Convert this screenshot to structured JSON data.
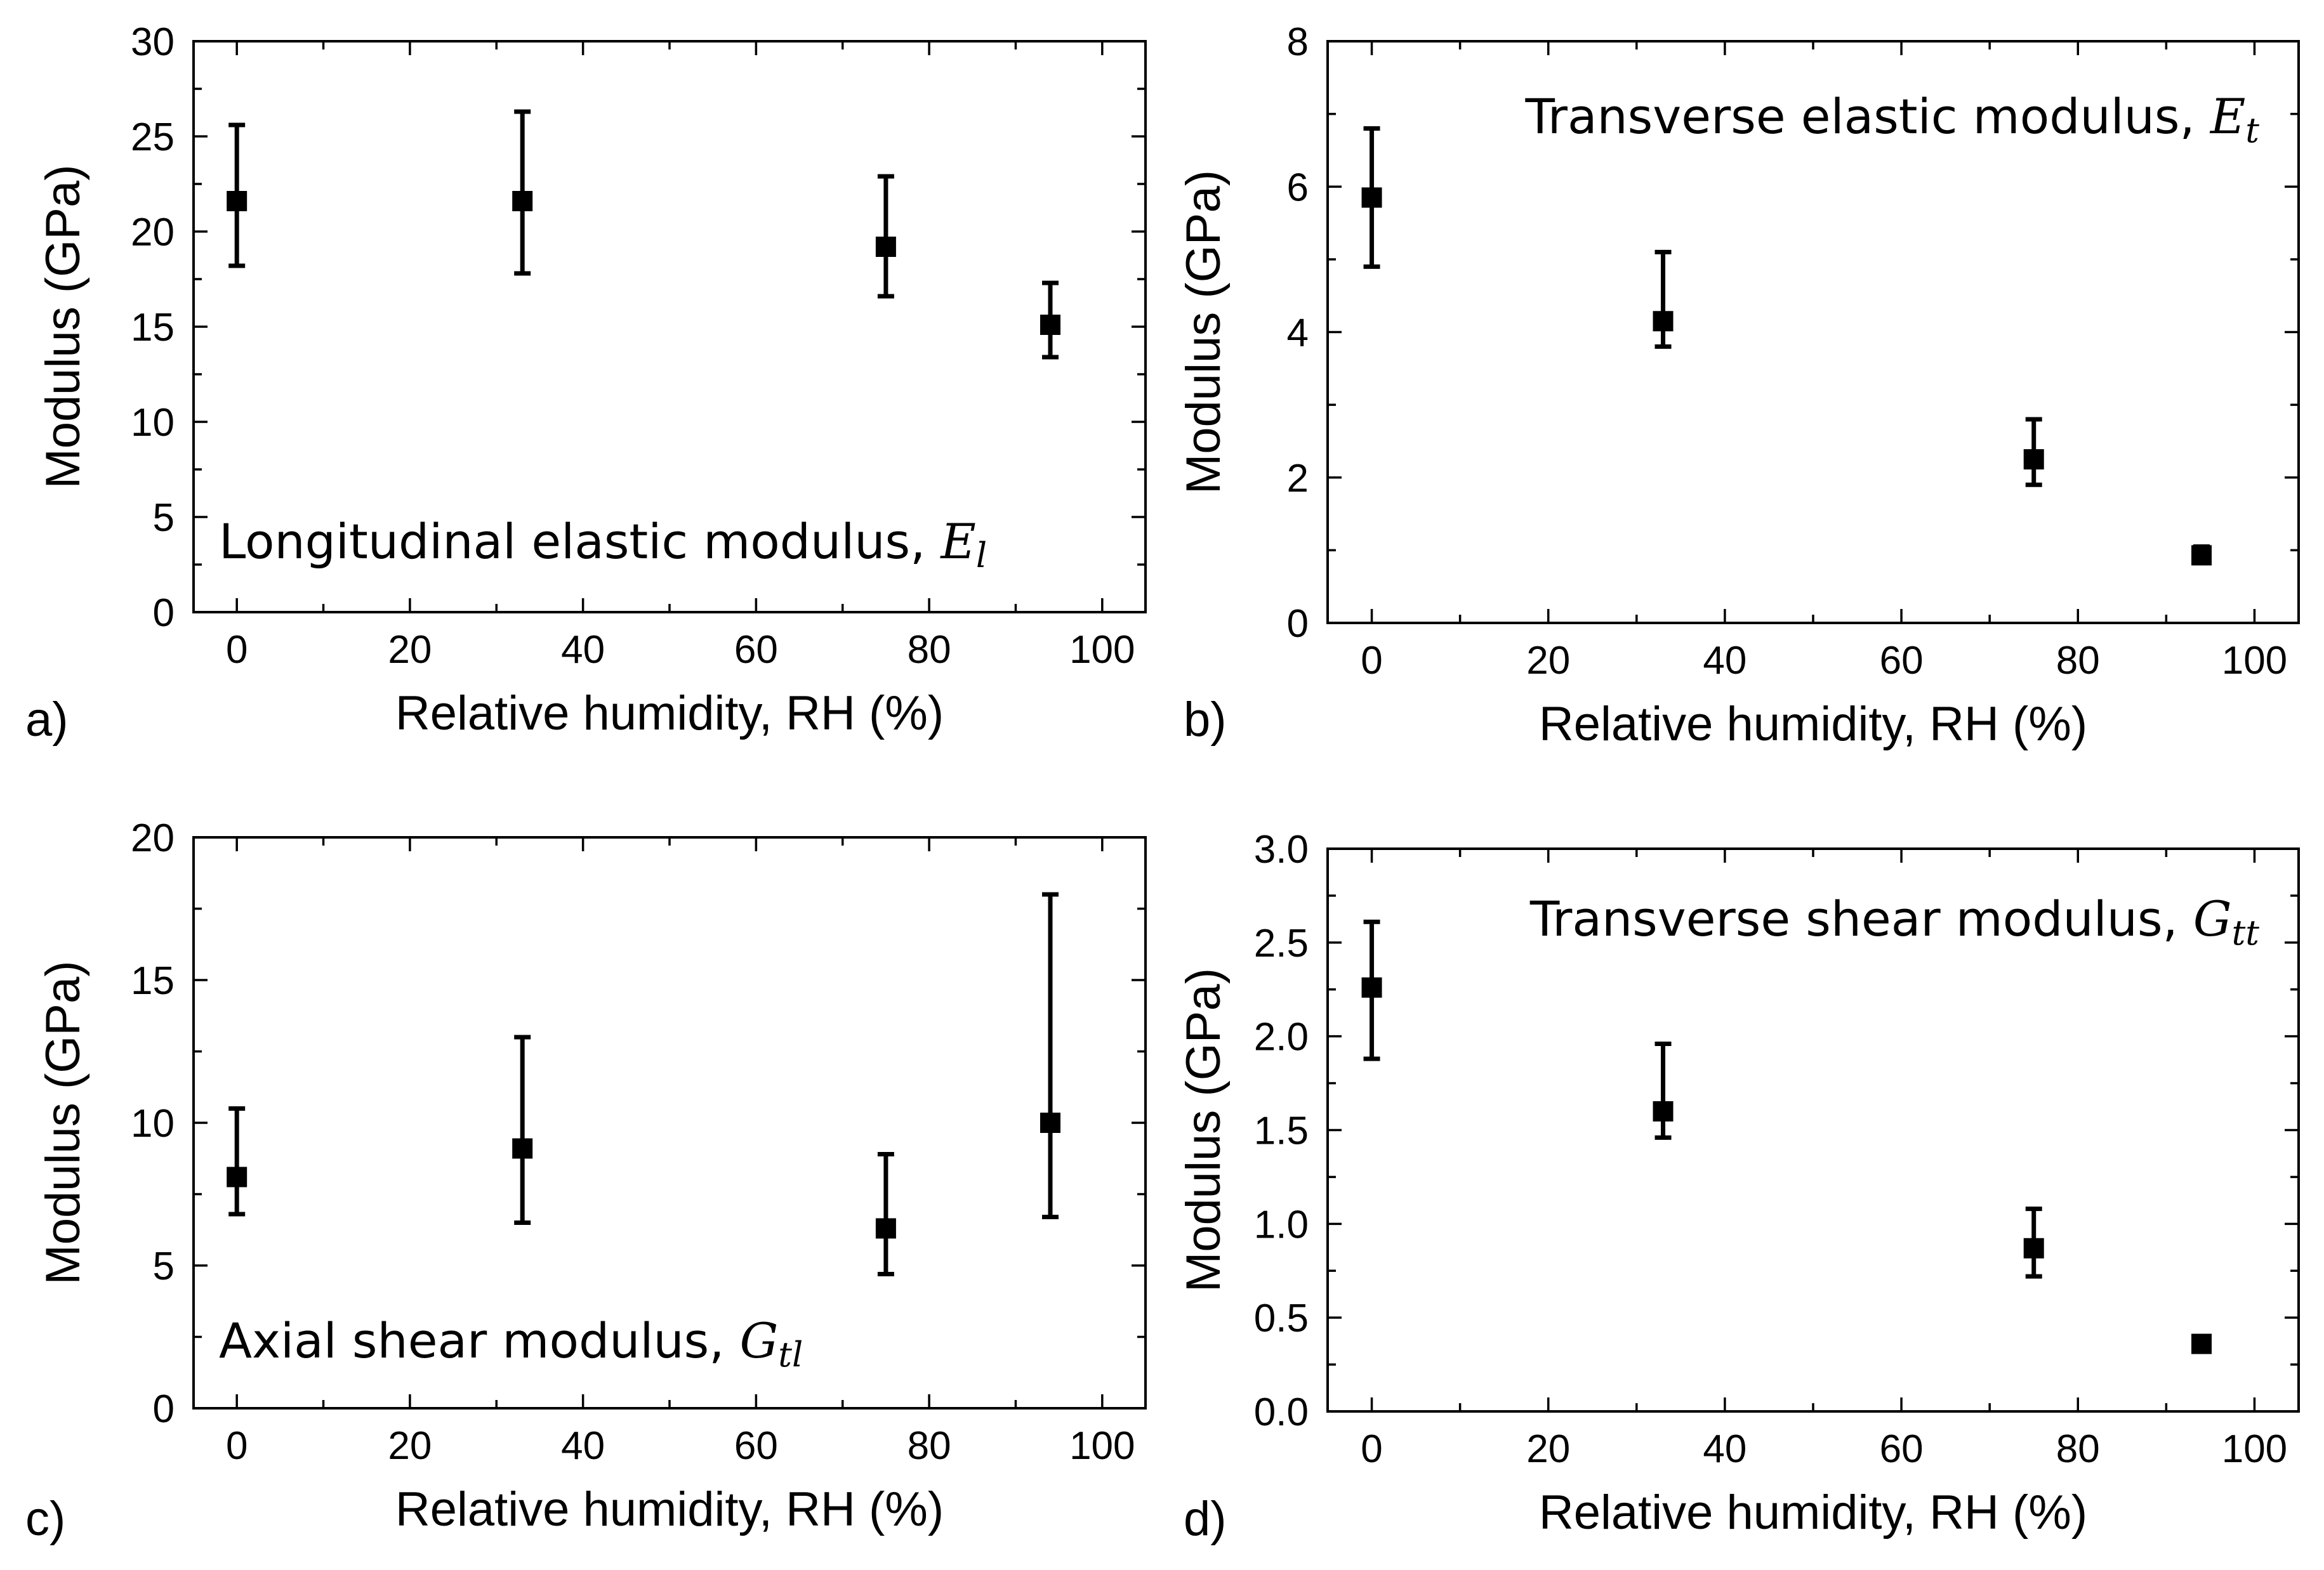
{
  "chart_data": [
    {
      "panel_label": "a)",
      "type": "scatter",
      "annotation": {
        "text": "Longitudinal elastic modulus, ",
        "variable": "E",
        "subscript": "l"
      },
      "xlabel": "Relative humidity, RH (%)",
      "ylabel": "Modulus (GPa)",
      "xlim": [
        -5,
        105
      ],
      "ylim": [
        0,
        30
      ],
      "xticks": [
        0,
        20,
        40,
        60,
        80,
        100
      ],
      "yticks": [
        0,
        5,
        10,
        15,
        20,
        25,
        30
      ],
      "tick_labels_y": [
        "0",
        "5",
        "10",
        "15",
        "20",
        "25",
        "30"
      ],
      "tick_labels_x": [
        "0",
        "20",
        "40",
        "60",
        "80",
        "100"
      ],
      "x_minor_step": 10,
      "y_minor_step": 2.5,
      "points": [
        {
          "x": 0,
          "y": 21.6,
          "err_low": 18.2,
          "err_high": 25.6
        },
        {
          "x": 33,
          "y": 21.6,
          "err_low": 17.8,
          "err_high": 26.3
        },
        {
          "x": 75,
          "y": 19.2,
          "err_low": 16.6,
          "err_high": 22.9
        },
        {
          "x": 94,
          "y": 15.1,
          "err_low": 13.4,
          "err_high": 17.3
        }
      ]
    },
    {
      "panel_label": "b)",
      "type": "scatter",
      "annotation": {
        "text": "Transverse elastic modulus, ",
        "variable": "E",
        "subscript": "t"
      },
      "xlabel": "Relative humidity, RH (%)",
      "ylabel": "Modulus (GPa)",
      "xlim": [
        -5,
        105
      ],
      "ylim": [
        0,
        8
      ],
      "xticks": [
        0,
        20,
        40,
        60,
        80,
        100
      ],
      "yticks": [
        0,
        2,
        4,
        6,
        8
      ],
      "tick_labels_y": [
        "0",
        "2",
        "4",
        "6",
        "8"
      ],
      "tick_labels_x": [
        "0",
        "20",
        "40",
        "60",
        "80",
        "100"
      ],
      "x_minor_step": 10,
      "y_minor_step": 1,
      "points": [
        {
          "x": 0,
          "y": 5.85,
          "err_low": 4.9,
          "err_high": 6.8
        },
        {
          "x": 33,
          "y": 4.15,
          "err_low": 3.8,
          "err_high": 5.1
        },
        {
          "x": 75,
          "y": 2.25,
          "err_low": 1.9,
          "err_high": 2.8
        },
        {
          "x": 94,
          "y": 0.93,
          "err_low": 0.85,
          "err_high": 1.05
        }
      ]
    },
    {
      "panel_label": "c)",
      "type": "scatter",
      "annotation": {
        "text": "Axial shear modulus, ",
        "variable": "G",
        "subscript": "tl"
      },
      "xlabel": "Relative humidity, RH (%)",
      "ylabel": "Modulus (GPa)",
      "xlim": [
        -5,
        105
      ],
      "ylim": [
        0,
        20
      ],
      "xticks": [
        0,
        20,
        40,
        60,
        80,
        100
      ],
      "yticks": [
        0,
        5,
        10,
        15,
        20
      ],
      "tick_labels_y": [
        "0",
        "5",
        "10",
        "15",
        "20"
      ],
      "tick_labels_x": [
        "0",
        "20",
        "40",
        "60",
        "80",
        "100"
      ],
      "x_minor_step": 10,
      "y_minor_step": 2.5,
      "points": [
        {
          "x": 0,
          "y": 8.1,
          "err_low": 6.8,
          "err_high": 10.5
        },
        {
          "x": 33,
          "y": 9.1,
          "err_low": 6.5,
          "err_high": 13.0
        },
        {
          "x": 75,
          "y": 6.3,
          "err_low": 4.7,
          "err_high": 8.9
        },
        {
          "x": 94,
          "y": 10.0,
          "err_low": 6.7,
          "err_high": 18.0
        }
      ]
    },
    {
      "panel_label": "d)",
      "type": "scatter",
      "annotation": {
        "text": "Transverse shear modulus, ",
        "variable": "G",
        "subscript": "tt"
      },
      "xlabel": "Relative humidity, RH (%)",
      "ylabel": "Modulus (GPa)",
      "xlim": [
        -5,
        105
      ],
      "ylim": [
        0,
        3
      ],
      "xticks": [
        0,
        20,
        40,
        60,
        80,
        100
      ],
      "yticks": [
        0,
        0.5,
        1,
        1.5,
        2,
        2.5,
        3
      ],
      "tick_labels_y": [
        "0.0",
        "0.5",
        "1.0",
        "1.5",
        "2.0",
        "2.5",
        "3.0"
      ],
      "tick_labels_x": [
        "0",
        "20",
        "40",
        "60",
        "80",
        "100"
      ],
      "x_minor_step": 10,
      "y_minor_step": 0.25,
      "points": [
        {
          "x": 0,
          "y": 2.26,
          "err_low": 1.88,
          "err_high": 2.61
        },
        {
          "x": 33,
          "y": 1.6,
          "err_low": 1.46,
          "err_high": 1.96
        },
        {
          "x": 75,
          "y": 0.87,
          "err_low": 0.72,
          "err_high": 1.08
        },
        {
          "x": 94,
          "y": 0.36,
          "err_low": 0.33,
          "err_high": 0.39
        }
      ]
    }
  ]
}
